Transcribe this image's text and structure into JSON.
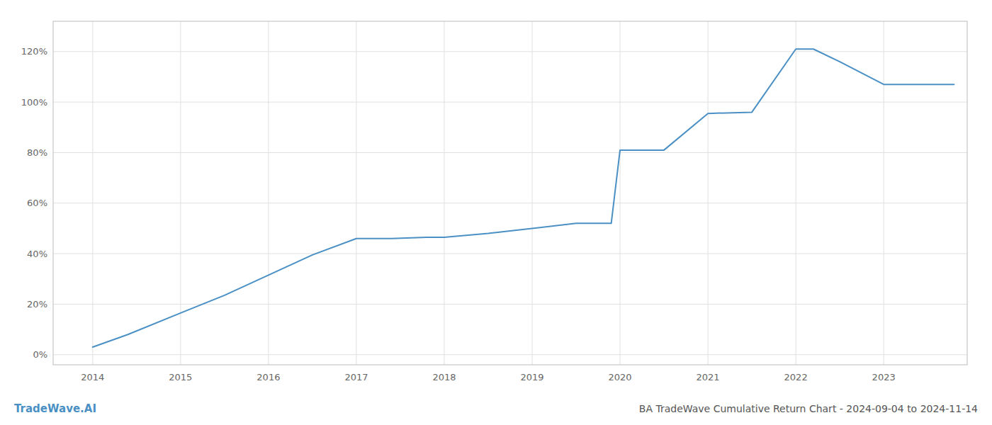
{
  "chart_data": {
    "type": "line",
    "title": "BA TradeWave Cumulative Return Chart - 2024-09-04 to 2024-11-14",
    "annotations": [
      "TradeWave.AI"
    ],
    "x": [
      2014.0,
      2014.4,
      2015.0,
      2015.5,
      2016.0,
      2016.5,
      2017.0,
      2017.4,
      2017.8,
      2018.0,
      2018.5,
      2019.0,
      2019.5,
      2019.85,
      2019.9,
      2020.0,
      2020.5,
      2021.0,
      2021.5,
      2022.0,
      2022.2,
      2022.5,
      2023.0,
      2023.8
    ],
    "values": [
      0.03,
      0.08,
      0.165,
      0.235,
      0.315,
      0.395,
      0.46,
      0.46,
      0.465,
      0.465,
      0.48,
      0.5,
      0.52,
      0.52,
      0.52,
      0.81,
      0.81,
      0.955,
      0.96,
      1.21,
      1.21,
      1.16,
      1.07,
      1.07
    ],
    "color": "#4a90c4",
    "xlim": [
      2013.55,
      2023.95
    ],
    "ylim": [
      -0.04,
      1.32
    ],
    "xticks": [
      2014,
      2015,
      2016,
      2017,
      2018,
      2019,
      2020,
      2021,
      2022,
      2023
    ],
    "yticks": [
      {
        "value": 0.0,
        "label": "0%"
      },
      {
        "value": 0.2,
        "label": "20%"
      },
      {
        "value": 0.4,
        "label": "40%"
      },
      {
        "value": 0.6,
        "label": "60%"
      },
      {
        "value": 0.8,
        "label": "80%"
      },
      {
        "value": 1.0,
        "label": "100%"
      },
      {
        "value": 1.2,
        "label": "120%"
      }
    ],
    "grid": true
  }
}
